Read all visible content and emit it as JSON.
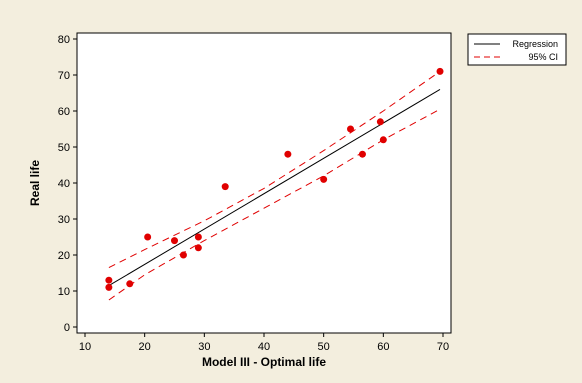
{
  "chart_data": {
    "type": "scatter",
    "title": "",
    "xlabel": "Model III - Optimal life",
    "ylabel": "Real life",
    "xlim": [
      10,
      70
    ],
    "ylim": [
      0,
      80
    ],
    "xticks": [
      10,
      20,
      30,
      40,
      50,
      60,
      70
    ],
    "yticks": [
      0,
      10,
      20,
      30,
      40,
      50,
      60,
      70,
      80
    ],
    "grid": false,
    "legend_position": "right",
    "colors": {
      "background": "#f3eede",
      "plot_area": "#ffffff",
      "points": "#e00000",
      "regression": "#000000",
      "ci": "#e00000"
    },
    "points": {
      "x": [
        14,
        14,
        17.5,
        20.5,
        25,
        26.5,
        29,
        29,
        33.5,
        44,
        50,
        54.5,
        56.5,
        59.5,
        60,
        69.5
      ],
      "y": [
        13,
        11,
        12,
        25,
        24,
        20,
        25,
        22,
        39,
        48,
        41,
        55,
        48,
        57,
        52,
        71
      ]
    },
    "series": [
      {
        "name": "Regression",
        "style": "solid",
        "x": [
          14,
          69.5
        ],
        "y": [
          11.5,
          66
        ]
      },
      {
        "name": "95% CI",
        "style": "dashed",
        "bands": [
          {
            "x": [
              14,
              20,
              30,
              40,
              50,
              60,
              69.5
            ],
            "y": [
              16.5,
              21.5,
              29.5,
              38.5,
              49,
              60,
              71
            ]
          },
          {
            "x": [
              14,
              20,
              30,
              40,
              50,
              60,
              69.5
            ],
            "y": [
              7.5,
              14.5,
              24,
              33,
              42,
              52,
              60.5
            ]
          }
        ]
      }
    ]
  }
}
